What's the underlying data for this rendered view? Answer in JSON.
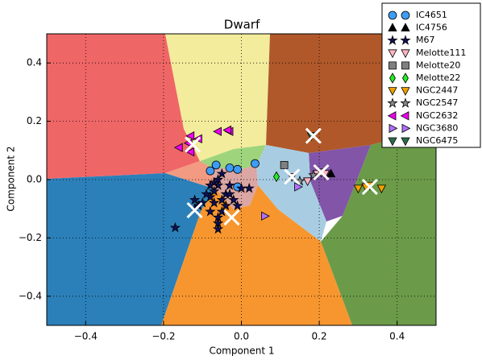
{
  "chart_data": {
    "type": "scatter",
    "title": "Dwarf",
    "x_label": "Component 1",
    "y_label": "Component 2",
    "xlim": [
      -0.5,
      0.5
    ],
    "ylim": [
      -0.5,
      0.5
    ],
    "xticks": [
      {
        "value": -0.4,
        "label": "−0.4"
      },
      {
        "value": -0.2,
        "label": "−0.2"
      },
      {
        "value": 0,
        "label": "0.0"
      },
      {
        "value": 0.2,
        "label": "0.2"
      },
      {
        "value": 0.4,
        "label": "0.4"
      }
    ],
    "yticks": [
      {
        "value": -0.4,
        "label": "−0.4"
      },
      {
        "value": -0.2,
        "label": "−0.2"
      },
      {
        "value": 0,
        "label": "0.0"
      },
      {
        "value": 0.2,
        "label": "0.2"
      },
      {
        "value": 0.4,
        "label": "0.4"
      }
    ],
    "grid": true,
    "legend": "upper right",
    "series": [
      {
        "name": "IC4651",
        "color": "#3d9cf5",
        "marker": "circle",
        "x": [
          -0.08,
          -0.065,
          -0.03,
          -0.01,
          0.035,
          -0.01
        ],
        "values": [
          0.03,
          0.05,
          0.04,
          0.035,
          0.055,
          -0.025
        ]
      },
      {
        "name": "IC4756",
        "color": "#000000",
        "marker": "triangle-up",
        "x": [
          0.23
        ],
        "values": [
          0.02
        ]
      },
      {
        "name": "M67",
        "color": "#10105a",
        "marker": "star",
        "x": [
          -0.17,
          -0.12,
          -0.11,
          -0.12,
          -0.08,
          -0.06,
          -0.06,
          -0.06,
          -0.05,
          -0.07,
          -0.08,
          -0.09,
          -0.06,
          -0.05,
          -0.07,
          -0.04,
          -0.03,
          -0.02,
          -0.01,
          0.02,
          -0.03,
          -0.05,
          -0.08,
          -0.06,
          -0.04,
          0.0,
          -0.1,
          -0.07
        ],
        "values": [
          -0.165,
          -0.07,
          -0.09,
          -0.1,
          -0.11,
          -0.13,
          -0.15,
          -0.17,
          -0.11,
          -0.04,
          -0.06,
          -0.05,
          -0.02,
          0.02,
          -0.01,
          -0.05,
          -0.05,
          -0.07,
          -0.09,
          -0.03,
          -0.02,
          -0.07,
          -0.02,
          0.0,
          -0.09,
          -0.03,
          -0.08,
          -0.08
        ]
      },
      {
        "name": "Melotte111",
        "color": "#ffb6c1",
        "marker": "triangle-down",
        "x": [
          0.13,
          0.17,
          0.195,
          0.205,
          0.215
        ],
        "values": [
          0.01,
          -0.005,
          0.02,
          0.025,
          0.02
        ]
      },
      {
        "name": "Melotte20",
        "color": "#808080",
        "marker": "square",
        "x": [
          0.11
        ],
        "values": [
          0.05
        ]
      },
      {
        "name": "Melotte22",
        "color": "#22ee22",
        "marker": "diamond",
        "x": [
          0.09
        ],
        "values": [
          0.01
        ]
      },
      {
        "name": "NGC2447",
        "color": "#f0a000",
        "marker": "triangle-down",
        "x": [
          0.3,
          0.32,
          0.36,
          0.33
        ],
        "values": [
          -0.03,
          -0.025,
          -0.03,
          -0.02
        ]
      },
      {
        "name": "NGC2547",
        "color": "#8a8a8a",
        "marker": "star",
        "x": [
          0.15,
          0.185
        ],
        "values": [
          -0.005,
          0.015
        ]
      },
      {
        "name": "NGC2632",
        "color": "#ee00ee",
        "marker": "triangle-left",
        "x": [
          -0.16,
          -0.135,
          -0.13,
          -0.13,
          -0.11,
          -0.06,
          -0.03,
          -0.035
        ],
        "values": [
          0.11,
          0.125,
          0.095,
          0.15,
          0.14,
          0.165,
          0.165,
          0.17
        ]
      },
      {
        "name": "NGC3680",
        "color": "#b070ff",
        "marker": "triangle-right",
        "x": [
          0.06,
          0.145
        ],
        "values": [
          -0.125,
          -0.025
        ]
      },
      {
        "name": "NGC6475",
        "color": "#2e6b4a",
        "marker": "triangle-down",
        "x": [
          0.18
        ],
        "values": [
          0.15
        ]
      }
    ],
    "centroids": {
      "x": [
        -0.125,
        -0.12,
        -0.025,
        0.185,
        0.13,
        0.205,
        0.33
      ],
      "values": [
        0.12,
        -0.105,
        -0.13,
        0.15,
        0.01,
        0.025,
        -0.025
      ]
    }
  }
}
